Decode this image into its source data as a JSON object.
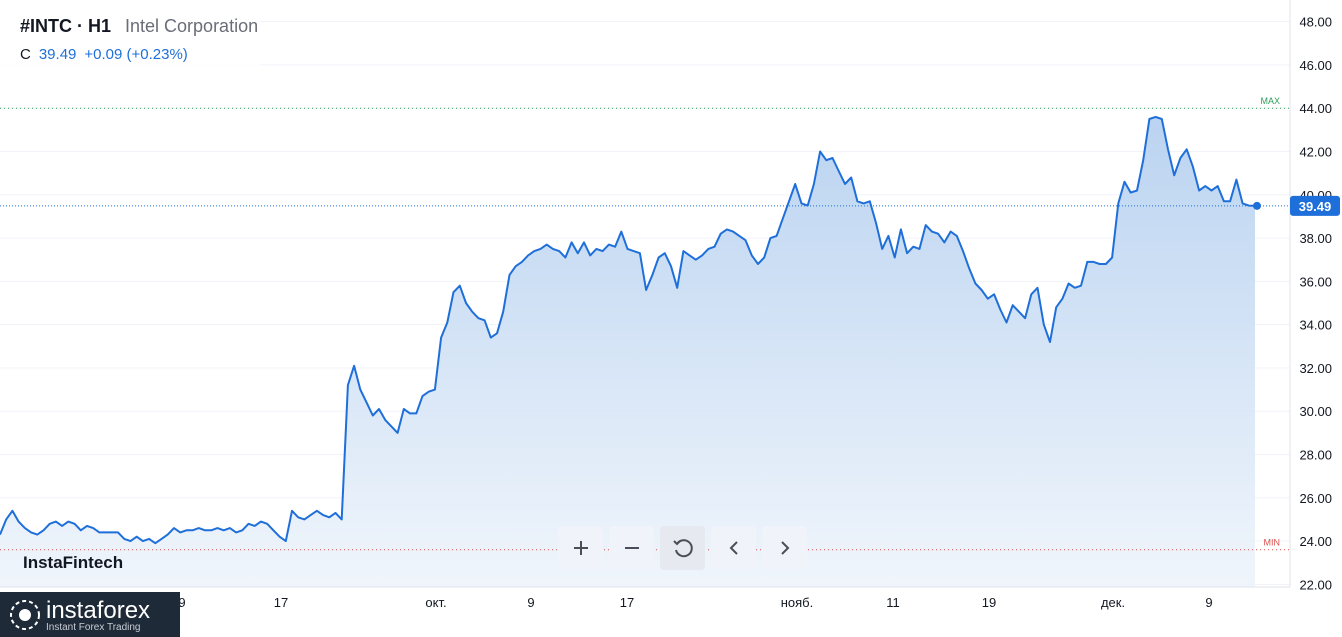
{
  "header": {
    "symbol": "#INTC · H1",
    "company": "Intel Corporation",
    "close_label": "C",
    "close_value": "39.49",
    "change": "+0.09 (+0.23%)"
  },
  "brand": "InstaFintech",
  "footer_logo": {
    "name": "instaforex",
    "tagline": "Instant Forex Trading"
  },
  "toolbar": {
    "zoom_in": "+",
    "zoom_out": "−",
    "reset": "reset",
    "back": "‹",
    "forward": "›"
  },
  "colors": {
    "line": "#1e6fd9",
    "fill_top": "#bcd5f2",
    "max_line": "#2e9c5b",
    "min_line": "#d9534f",
    "price_badge": "#1e6fd9"
  },
  "chart_data": {
    "type": "area",
    "title": "#INTC · H1",
    "ylim": [
      21.0,
      49.0
    ],
    "y_ticks": [
      "22.00",
      "24.00",
      "26.00",
      "28.00",
      "30.00",
      "32.00",
      "34.00",
      "36.00",
      "38.00",
      "40.00",
      "42.00",
      "44.00",
      "46.00",
      "48.00"
    ],
    "x_tick_labels": [
      "9",
      "17",
      "окт.",
      "9",
      "17",
      "нояб.",
      "11",
      "19",
      "дек.",
      "9"
    ],
    "max_label": "MAX",
    "min_label": "MIN",
    "max_value": 44.0,
    "min_value": 23.6,
    "last_price": 39.49,
    "last_price_label": "39.49",
    "series": [
      {
        "values": [
          24.3,
          25.0,
          25.4,
          24.9,
          24.6,
          24.4,
          24.3,
          24.5,
          24.8,
          24.9,
          24.7,
          24.9,
          24.8,
          24.5,
          24.7,
          24.6,
          24.4,
          24.4,
          24.4,
          24.4,
          24.1,
          24.0,
          24.2,
          24.0,
          24.1,
          23.9,
          24.1,
          24.3,
          24.6,
          24.4,
          24.5,
          24.5,
          24.6,
          24.5,
          24.5,
          24.6,
          24.5,
          24.6,
          24.4,
          24.5,
          24.8,
          24.7,
          24.9,
          24.8,
          24.5,
          24.2,
          24.0,
          25.4,
          25.1,
          25.0,
          25.2,
          25.4,
          25.2,
          25.1,
          25.3,
          25.0,
          31.2,
          32.1,
          31.0,
          30.4,
          29.8,
          30.1,
          29.6,
          29.3,
          29.0,
          30.1,
          29.9,
          29.9,
          30.7,
          30.9,
          31.0,
          33.4,
          34.1,
          35.5,
          35.8,
          35.0,
          34.6,
          34.3,
          34.2,
          33.4,
          33.6,
          34.6,
          36.3,
          36.7,
          36.9,
          37.2,
          37.4,
          37.5,
          37.7,
          37.5,
          37.4,
          37.1,
          37.8,
          37.3,
          37.8,
          37.2,
          37.5,
          37.4,
          37.7,
          37.6,
          38.3,
          37.5,
          37.4,
          37.3,
          35.6,
          36.3,
          37.1,
          37.3,
          36.7,
          35.7,
          37.4,
          37.2,
          37.0,
          37.2,
          37.5,
          37.6,
          38.2,
          38.4,
          38.3,
          38.1,
          37.9,
          37.2,
          36.8,
          37.1,
          38.0,
          38.1,
          38.9,
          39.7,
          40.5,
          39.6,
          39.5,
          40.5,
          42.0,
          41.6,
          41.7,
          41.1,
          40.5,
          40.8,
          39.7,
          39.6,
          39.7,
          38.7,
          37.5,
          38.1,
          37.1,
          38.4,
          37.3,
          37.6,
          37.5,
          38.6,
          38.3,
          38.2,
          37.8,
          38.3,
          38.1,
          37.4,
          36.6,
          35.9,
          35.6,
          35.2,
          35.4,
          34.7,
          34.1,
          34.9,
          34.6,
          34.3,
          35.4,
          35.7,
          34.0,
          33.2,
          34.8,
          35.2,
          35.9,
          35.7,
          35.8,
          36.9,
          36.9,
          36.8,
          36.8,
          37.1,
          39.6,
          40.6,
          40.1,
          40.2,
          41.6,
          43.5,
          43.6,
          43.5,
          42.1,
          40.9,
          41.7,
          42.1,
          41.3,
          40.2,
          40.4,
          40.2,
          40.4,
          39.7,
          39.7,
          40.7,
          39.6,
          39.5,
          39.49
        ]
      }
    ]
  }
}
